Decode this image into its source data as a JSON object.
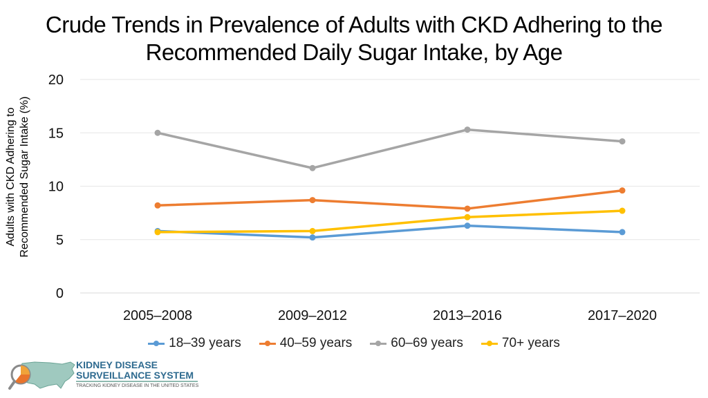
{
  "chart_data": {
    "type": "line",
    "title_lines": [
      "Crude Trends in Prevalence of Adults with CKD Adhering to the",
      "Recommended Daily Sugar Intake, by Age"
    ],
    "ylabel_lines": [
      "Adults with CKD Adhering to",
      "Recommended Sugar Intake (%)"
    ],
    "xlabel": "",
    "categories": [
      "2005–2008",
      "2009–2012",
      "2013–2016",
      "2017–2020"
    ],
    "ylim": [
      0,
      20
    ],
    "yticks": [
      0,
      5,
      10,
      15,
      20
    ],
    "grid": true,
    "legend_position": "bottom",
    "series": [
      {
        "name": "18–39 years",
        "color": "#5b9bd5",
        "values": [
          5.8,
          5.2,
          6.3,
          5.7
        ]
      },
      {
        "name": "40–59 years",
        "color": "#ed7d31",
        "values": [
          8.2,
          8.7,
          7.9,
          9.6
        ]
      },
      {
        "name": "60–69 years",
        "color": "#a5a5a5",
        "values": [
          15.0,
          11.7,
          15.3,
          14.2
        ]
      },
      {
        "name": "70+ years",
        "color": "#ffc000",
        "values": [
          5.7,
          5.8,
          7.1,
          7.7
        ]
      }
    ]
  },
  "logo": {
    "line1": "KIDNEY DISEASE",
    "line2": "SURVEILLANCE SYSTEM",
    "line3": "TRACKING KIDNEY DISEASE IN THE UNITED STATES"
  }
}
